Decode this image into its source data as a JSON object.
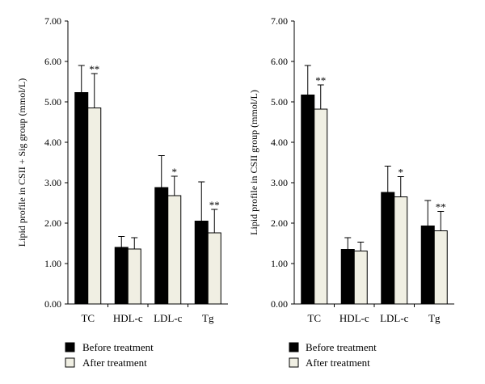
{
  "chart_data": [
    {
      "type": "bar",
      "ylabel": "Lipid profile in CSII + Sig group (mmol/L)",
      "ylim": [
        0,
        7
      ],
      "yticks": [
        "0.00",
        "1.00",
        "2.00",
        "3.00",
        "4.00",
        "5.00",
        "6.00",
        "7.00"
      ],
      "categories": [
        "TC",
        "HDL-c",
        "LDL-c",
        "Tg"
      ],
      "series": [
        {
          "name": "Before treatment",
          "color": "#000000",
          "values": [
            5.23,
            1.4,
            2.88,
            2.05
          ],
          "errors": [
            0.67,
            0.27,
            0.79,
            0.97
          ]
        },
        {
          "name": "After treatment",
          "color": "#f0efe3",
          "values": [
            4.85,
            1.36,
            2.68,
            1.76
          ],
          "errors": [
            0.85,
            0.28,
            0.48,
            0.58
          ]
        }
      ],
      "annotations": [
        "**",
        "",
        "*",
        "**"
      ]
    },
    {
      "type": "bar",
      "ylabel": "Lipid profile in CSII group (mmol/L)",
      "ylim": [
        0,
        7
      ],
      "yticks": [
        "0.00",
        "1.00",
        "2.00",
        "3.00",
        "4.00",
        "5.00",
        "6.00",
        "7.00"
      ],
      "categories": [
        "TC",
        "HDL-c",
        "LDL-c",
        "Tg"
      ],
      "series": [
        {
          "name": "Before treatment",
          "color": "#000000",
          "values": [
            5.17,
            1.35,
            2.76,
            1.93
          ],
          "errors": [
            0.73,
            0.29,
            0.65,
            0.63
          ]
        },
        {
          "name": "After treatment",
          "color": "#f0efe3",
          "values": [
            4.82,
            1.31,
            2.65,
            1.81
          ],
          "errors": [
            0.6,
            0.22,
            0.5,
            0.48
          ]
        }
      ],
      "annotations": [
        "**",
        "",
        "*",
        "**"
      ]
    }
  ],
  "legend": {
    "before_label": "Before treatment",
    "after_label": "After treatment"
  }
}
